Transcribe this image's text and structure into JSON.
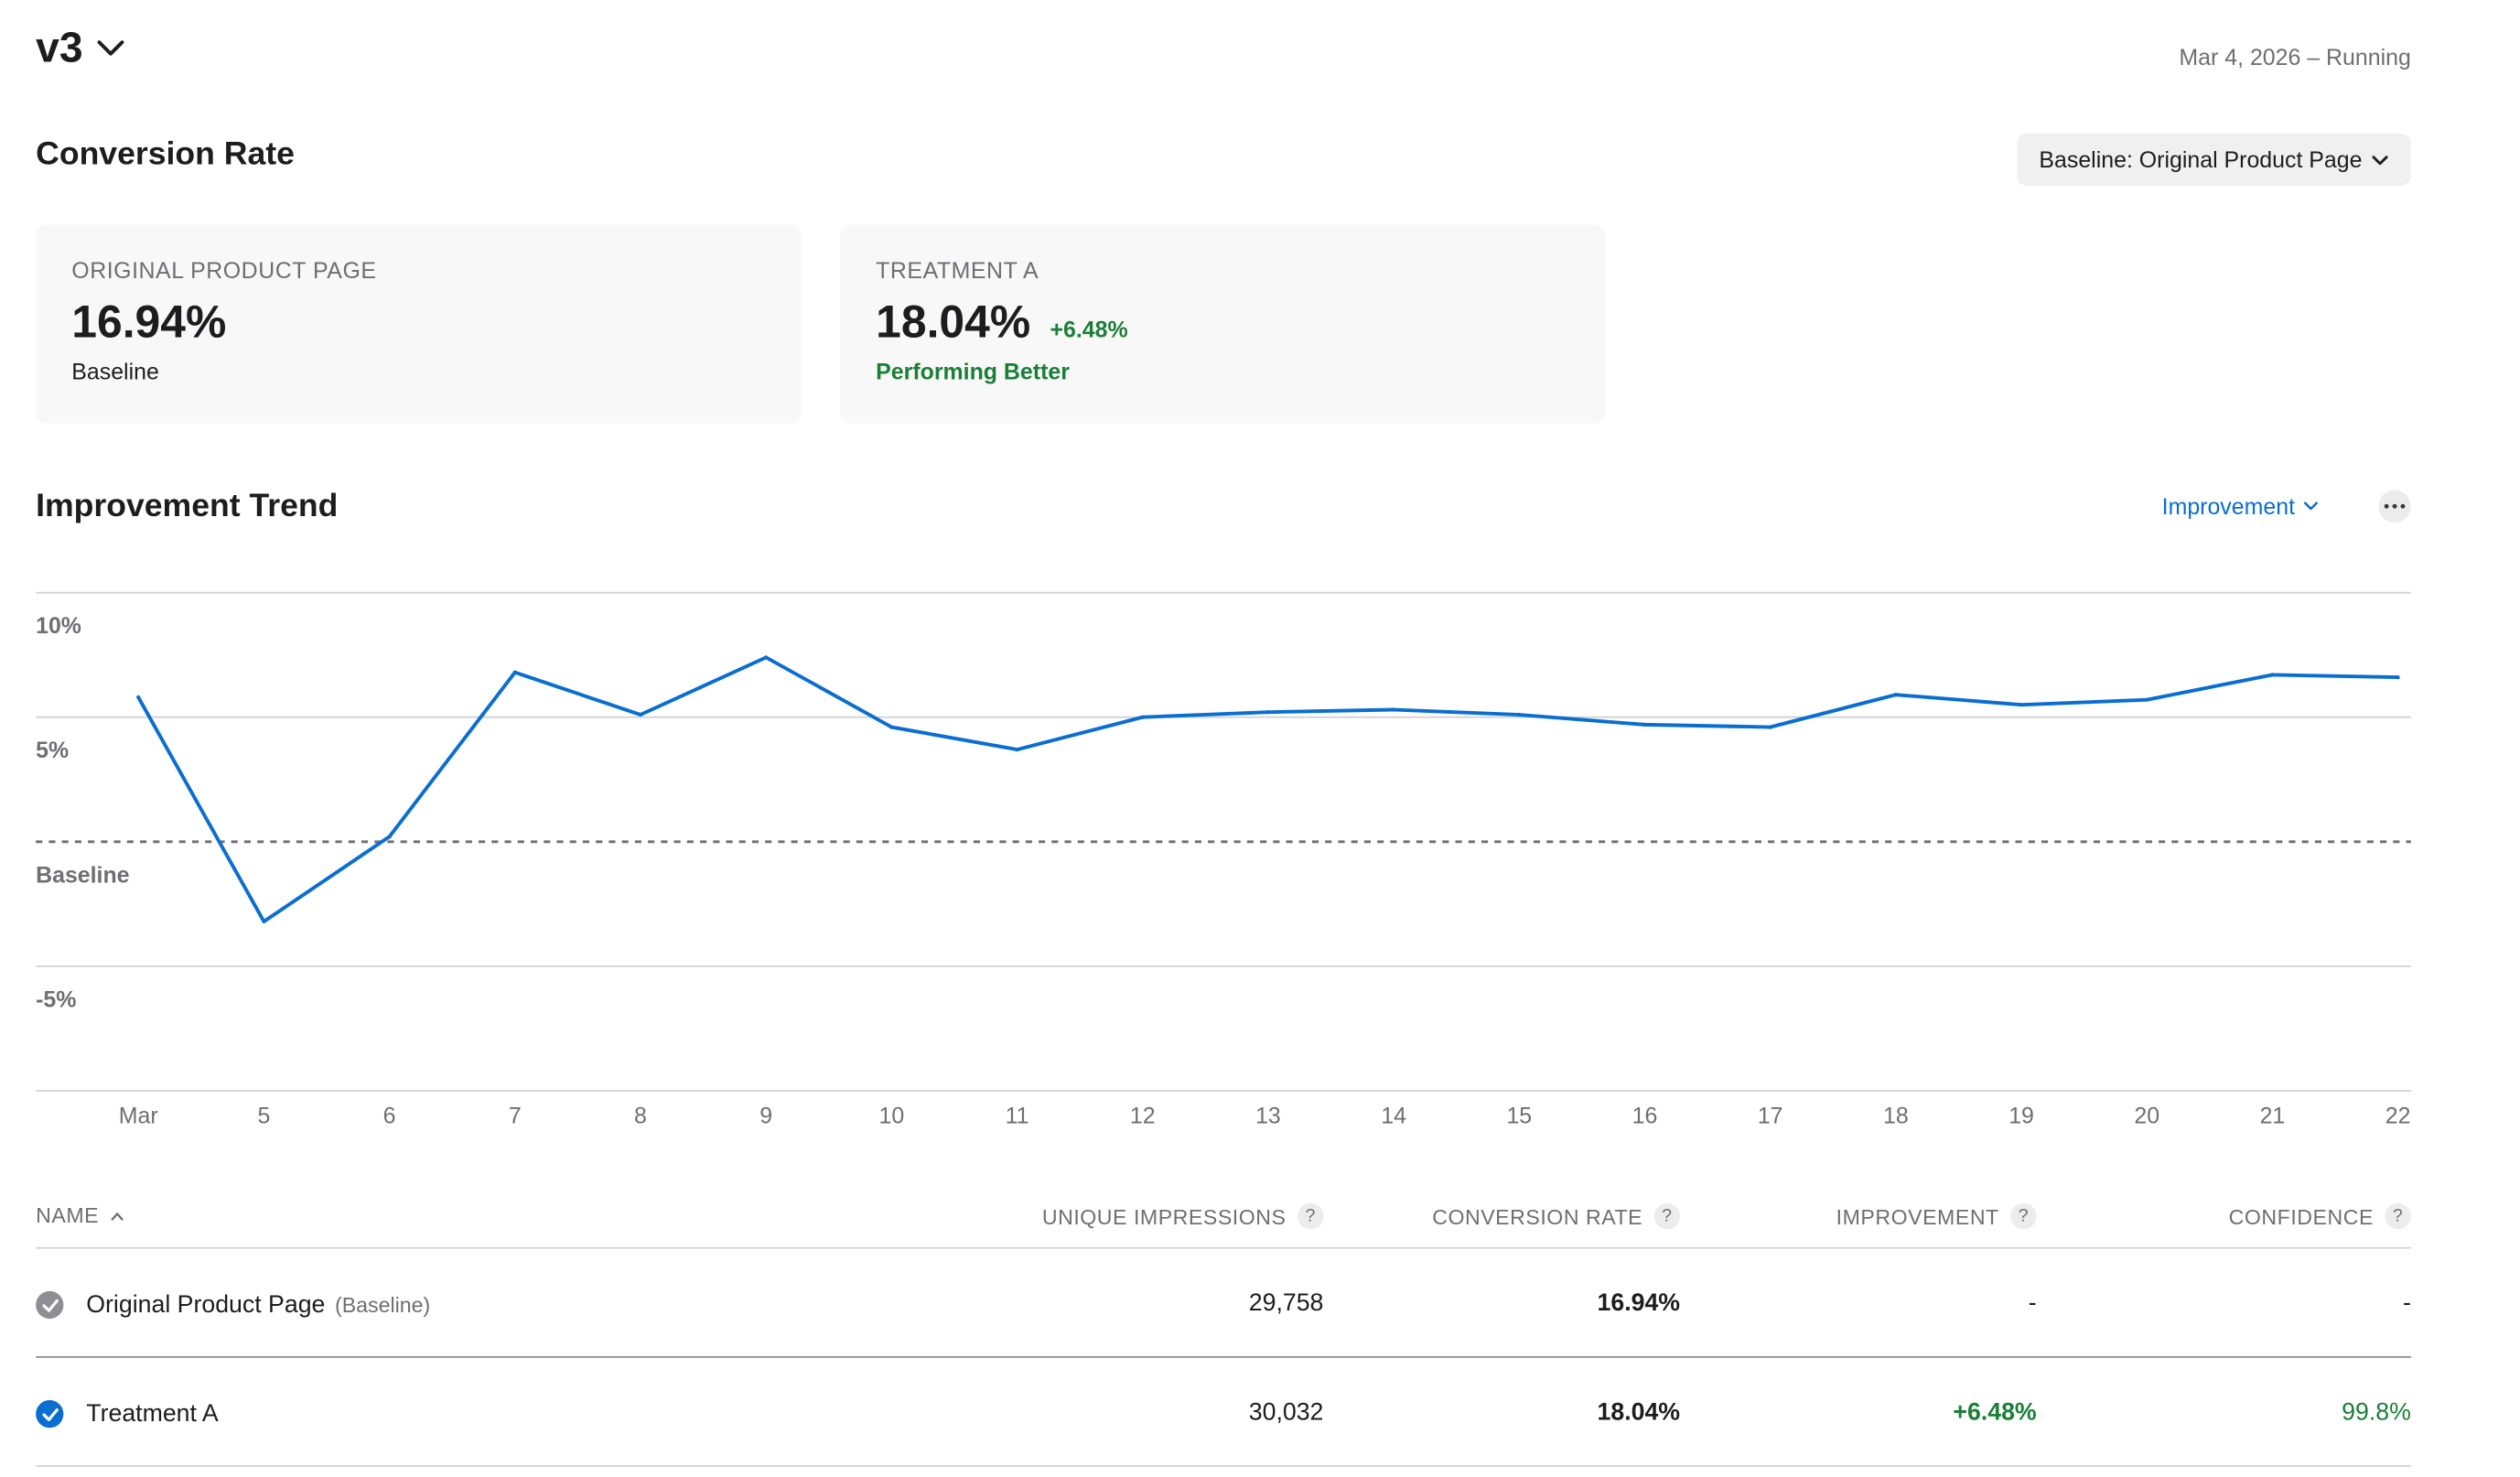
{
  "header": {
    "version_label": "v3",
    "status": "Mar 4, 2026 – Running"
  },
  "conversion": {
    "title": "Conversion Rate",
    "baseline_selector": "Baseline: Original Product Page"
  },
  "cards": [
    {
      "title": "ORIGINAL PRODUCT PAGE",
      "value": "16.94%",
      "delta": "",
      "subtitle": "Baseline"
    },
    {
      "title": "TREATMENT A",
      "value": "18.04%",
      "delta": "+6.48%",
      "subtitle": "Performing Better"
    }
  ],
  "trend": {
    "title": "Improvement Trend",
    "metric_selector": "Improvement"
  },
  "chart_data": {
    "type": "line",
    "title": "",
    "xlabel": "",
    "ylabel": "",
    "x": [
      "Mar",
      "5",
      "6",
      "7",
      "8",
      "9",
      "10",
      "11",
      "12",
      "13",
      "14",
      "15",
      "16",
      "17",
      "18",
      "19",
      "20",
      "21",
      "22"
    ],
    "y_tick_labels": [
      "10%",
      "5%",
      "Baseline",
      "-5%"
    ],
    "ylim": [
      -10,
      10
    ],
    "grid": true,
    "baseline_value": 0,
    "series": [
      {
        "values": [
          5.8,
          -3.2,
          0.2,
          6.8,
          5.1,
          7.4,
          4.6,
          3.7,
          5.0,
          5.2,
          5.3,
          5.1,
          4.7,
          4.6,
          5.9,
          5.5,
          5.7,
          6.7,
          6.6
        ],
        "color": "#0a6ed1"
      }
    ]
  },
  "table": {
    "columns": [
      "NAME",
      "UNIQUE IMPRESSIONS",
      "CONVERSION RATE",
      "IMPROVEMENT",
      "CONFIDENCE"
    ],
    "rows": [
      {
        "name": "Original Product Page",
        "tag": "(Baseline)",
        "impressions": "29,758",
        "conversion_rate": "16.94%",
        "improvement": "-",
        "confidence": "-"
      },
      {
        "name": "Treatment A",
        "tag": "",
        "impressions": "30,032",
        "conversion_rate": "18.04%",
        "improvement": "+6.48%",
        "confidence": "99.8%"
      }
    ]
  },
  "colors": {
    "accent": "#0a6ed1",
    "positive": "#1a7f37",
    "muted": "#6e6e73",
    "baseline_check": "#8e8e93"
  }
}
